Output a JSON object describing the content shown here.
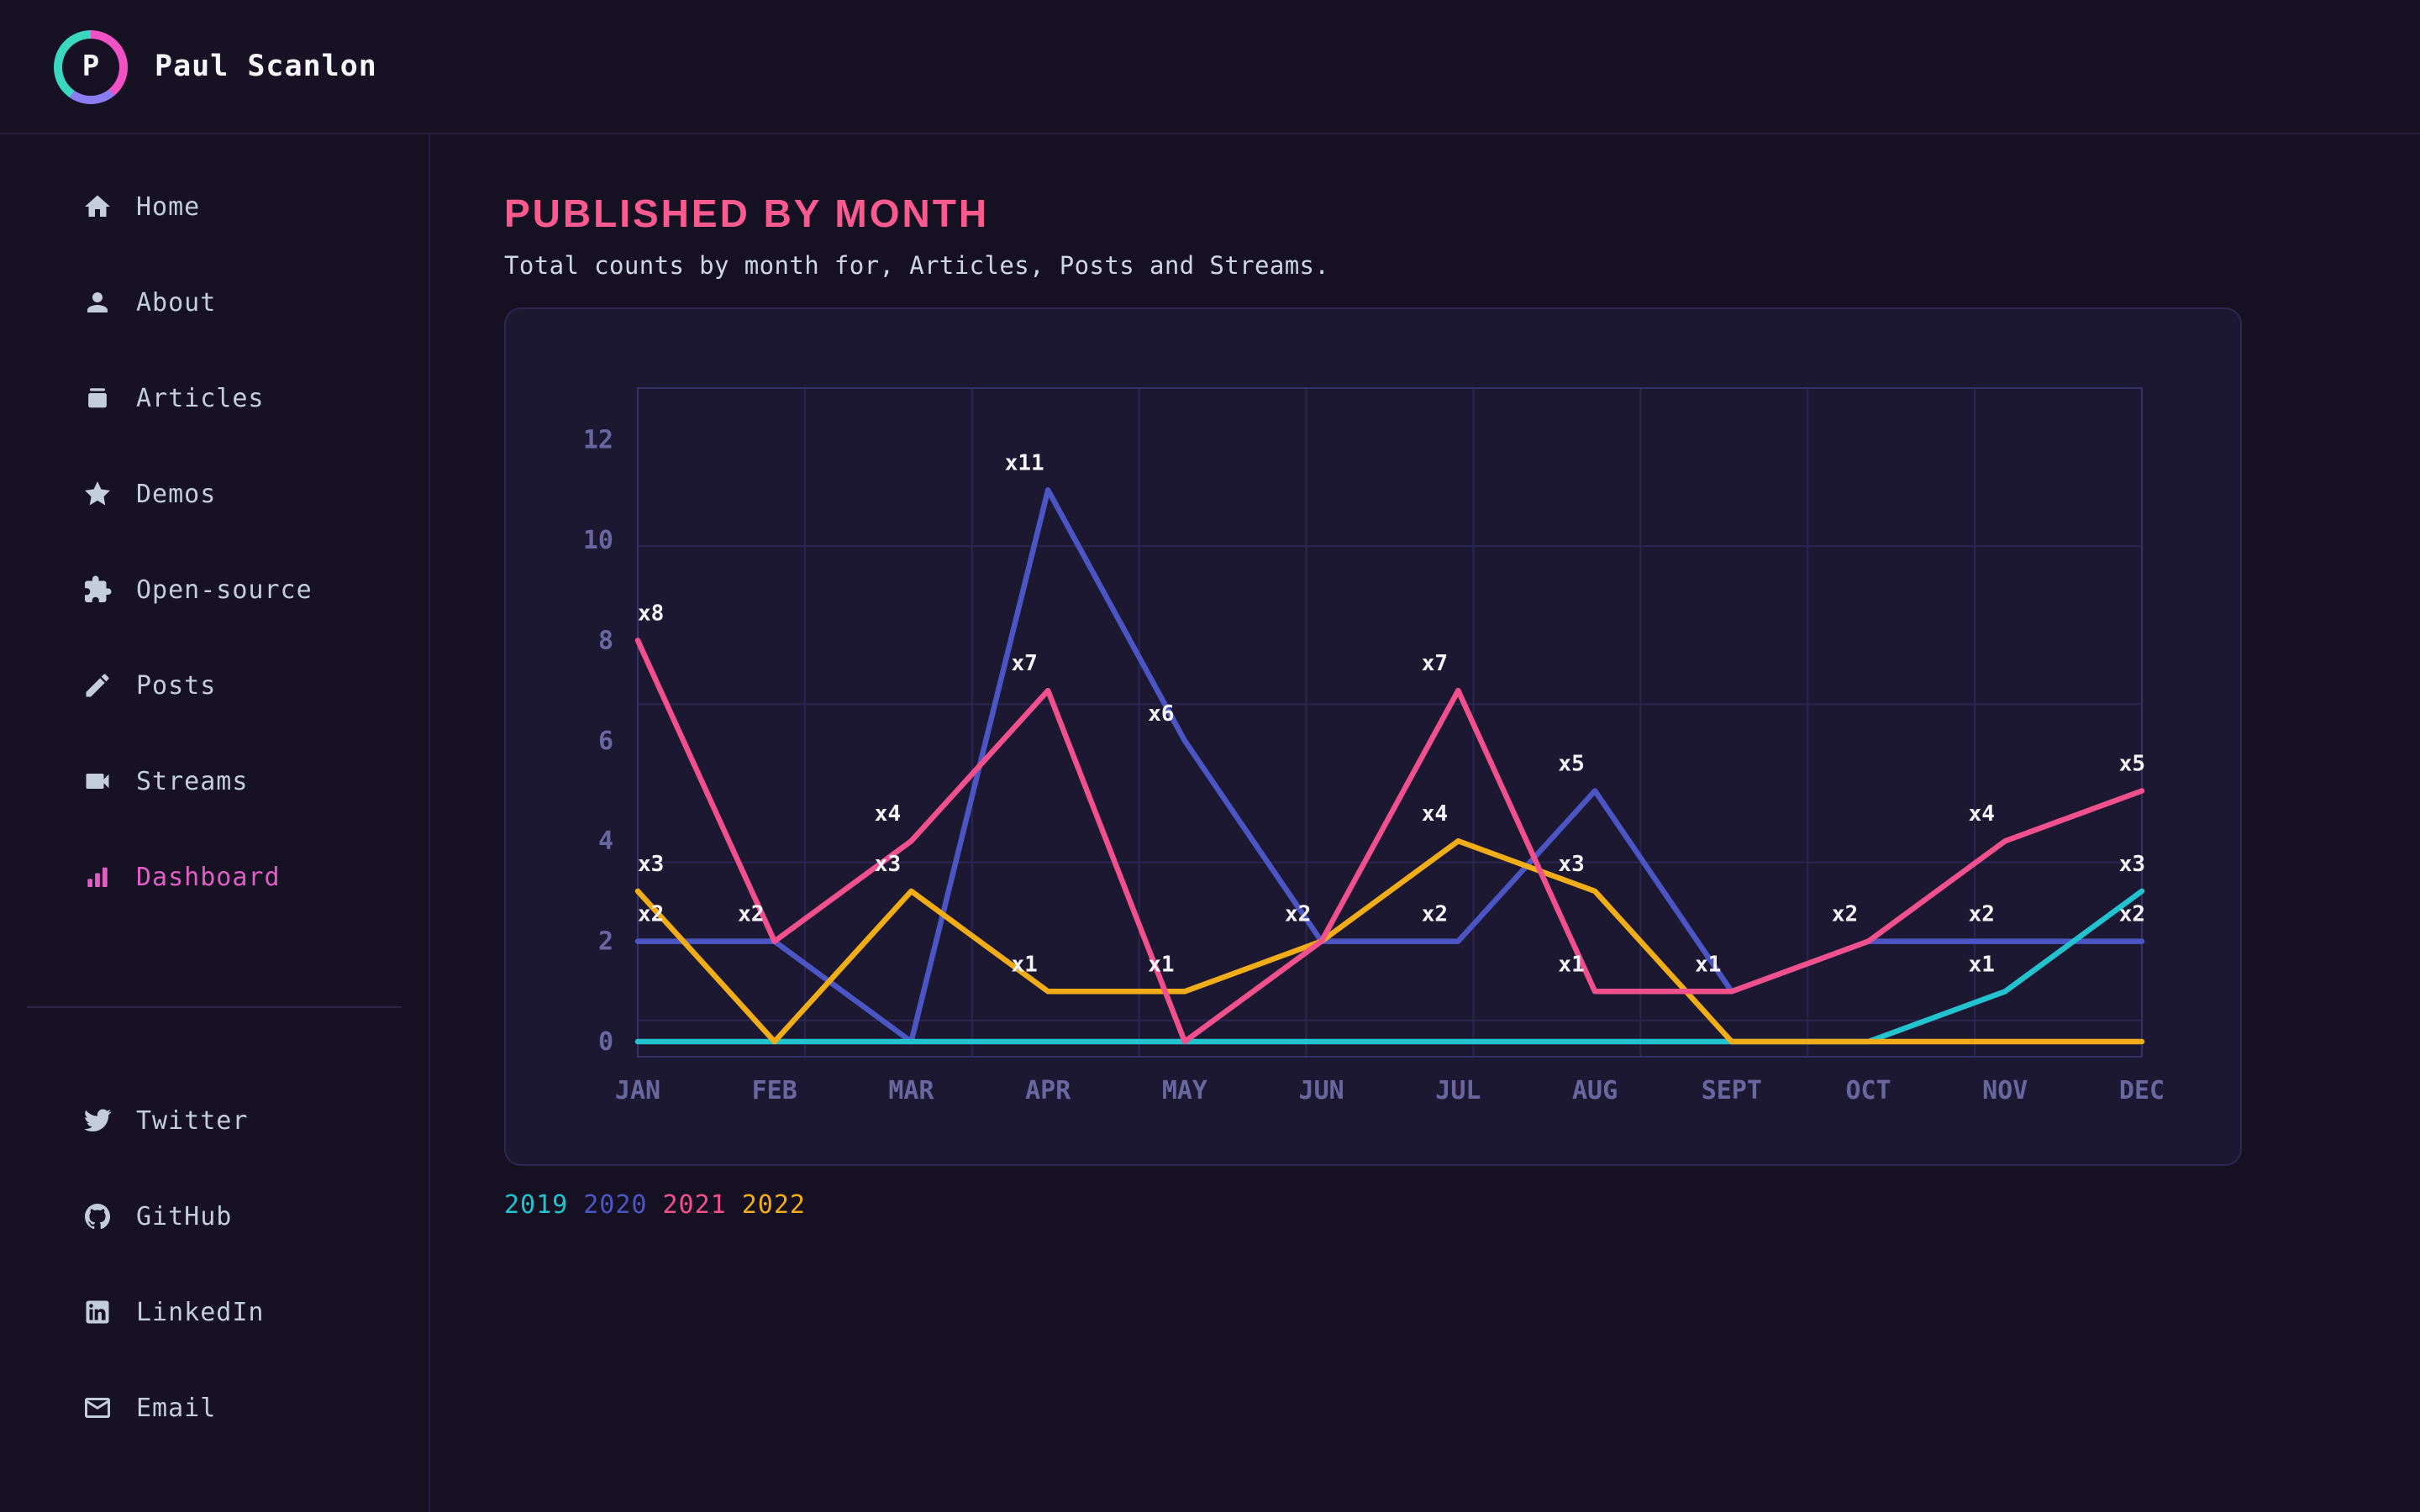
{
  "header": {
    "name": "Paul Scanlon",
    "avatar_initial": "P"
  },
  "sidebar": {
    "nav": [
      {
        "label": "Home",
        "icon": "home-icon",
        "active": false
      },
      {
        "label": "About",
        "icon": "person-icon",
        "active": false
      },
      {
        "label": "Articles",
        "icon": "archive-icon",
        "active": false
      },
      {
        "label": "Demos",
        "icon": "star-icon",
        "active": false
      },
      {
        "label": "Open-source",
        "icon": "puzzle-icon",
        "active": false
      },
      {
        "label": "Posts",
        "icon": "pencil-icon",
        "active": false
      },
      {
        "label": "Streams",
        "icon": "video-icon",
        "active": false
      },
      {
        "label": "Dashboard",
        "icon": "bar-chart-icon",
        "active": true
      }
    ],
    "social": [
      {
        "label": "Twitter",
        "icon": "twitter-icon"
      },
      {
        "label": "GitHub",
        "icon": "github-icon"
      },
      {
        "label": "LinkedIn",
        "icon": "linkedin-icon"
      },
      {
        "label": "Email",
        "icon": "email-icon"
      }
    ]
  },
  "main": {
    "title": "PUBLISHED BY MONTH",
    "subtitle": "Total counts by month for, Articles, Posts and Streams."
  },
  "chart_data": {
    "type": "line",
    "title": "Published by month",
    "categories": [
      "JAN",
      "FEB",
      "MAR",
      "APR",
      "MAY",
      "JUN",
      "JUL",
      "AUG",
      "SEPT",
      "OCT",
      "NOV",
      "DEC"
    ],
    "series": [
      {
        "name": "2019",
        "color": "#22c3ce",
        "z": 2,
        "values": [
          0,
          0,
          0,
          0,
          0,
          0,
          0,
          0,
          0,
          0,
          1,
          3
        ]
      },
      {
        "name": "2020",
        "color": "#4b55c4",
        "z": 1,
        "values": [
          2,
          2,
          0,
          11,
          6,
          2,
          2,
          5,
          1,
          2,
          2,
          2
        ]
      },
      {
        "name": "2021",
        "color": "#f0508c",
        "z": 4,
        "values": [
          8,
          2,
          4,
          7,
          0,
          2,
          7,
          1,
          1,
          2,
          4,
          5
        ]
      },
      {
        "name": "2022",
        "color": "#f1ad18",
        "z": 3,
        "values": [
          3,
          0,
          3,
          1,
          1,
          2,
          4,
          3,
          0,
          0,
          0,
          0
        ]
      }
    ],
    "yticks": [
      12,
      10,
      8,
      6,
      4,
      2,
      0
    ],
    "ylim": [
      0,
      13
    ],
    "grid": {
      "columns": 9,
      "rows": 4,
      "visible": true
    },
    "legend": {
      "position": "bottom-left"
    },
    "point_label_format": "x{value}",
    "point_label_color": "#f6f4fa",
    "axis_label_color": "#6b66a0",
    "grid_color": "#2a2650",
    "plot_border_color": "#353066"
  },
  "colors": {
    "page_background": "#161122",
    "panel_background": "#1d1831",
    "accent_title": "#fa5a8e",
    "active_nav": "#e05fc4"
  }
}
